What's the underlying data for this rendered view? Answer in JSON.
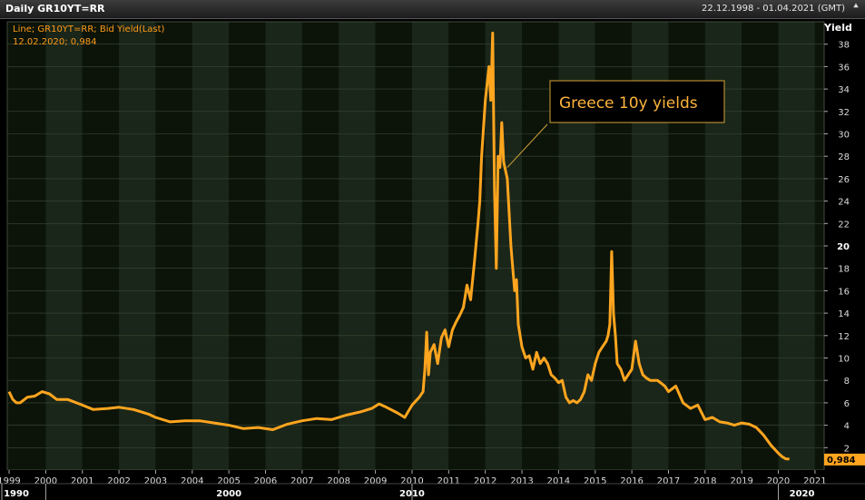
{
  "window": {
    "title": "Daily GR10YT=RR",
    "date_range": "22.12.1998 - 01.04.2021 (GMT)",
    "collapse_icon": "double-chevron-up-icon"
  },
  "legend": {
    "line1": "Line; GR10YT=RR; Bid Yield(Last)",
    "line2": "12.02.2020; 0,984"
  },
  "annotation": {
    "text": "Greece 10y yields"
  },
  "last_value_label": "0,984",
  "colors": {
    "series": "#ffa51f",
    "background": "#0c1409",
    "band_alt": "#1a2619",
    "grid": "#3a4a38",
    "annotation_border": "#d4a23a"
  },
  "chart_data": {
    "type": "line",
    "title": "",
    "xlabel": "",
    "ylabel": "Yield",
    "ylim": [
      0,
      40
    ],
    "yticks": [
      2,
      4,
      6,
      8,
      10,
      12,
      14,
      16,
      18,
      20,
      22,
      24,
      26,
      28,
      30,
      32,
      34,
      36,
      38
    ],
    "xlim": [
      1998.95,
      2021.25
    ],
    "xticks": [
      "1999",
      "2000",
      "2001",
      "2002",
      "2003",
      "2004",
      "2005",
      "2006",
      "2007",
      "2008",
      "2009",
      "2010",
      "2011",
      "2012",
      "2013",
      "2014",
      "2015",
      "2016",
      "2017",
      "2018",
      "2019",
      "2020",
      "2021"
    ],
    "decade_labels": [
      "1990",
      "2000",
      "2010",
      "2020"
    ],
    "grid": true,
    "series": [
      {
        "x": [
          1999.0,
          1999.1,
          1999.2,
          1999.3,
          1999.5,
          1999.7,
          1999.9,
          2000.1,
          2000.3,
          2000.6,
          2001.0,
          2001.3,
          2001.7,
          2002.0,
          2002.4,
          2002.8,
          2003.0,
          2003.4,
          2003.8,
          2004.2,
          2004.6,
          2005.0,
          2005.4,
          2005.8,
          2006.2,
          2006.6,
          2007.0,
          2007.4,
          2007.8,
          2008.2,
          2008.6,
          2008.9,
          2009.1,
          2009.3,
          2009.6,
          2009.8,
          2010.0,
          2010.2,
          2010.3,
          2010.35,
          2010.4,
          2010.45,
          2010.5,
          2010.6,
          2010.7,
          2010.8,
          2010.9,
          2011.0,
          2011.1,
          2011.2,
          2011.3,
          2011.4,
          2011.5,
          2011.6,
          2011.7,
          2011.8,
          2011.85,
          2011.9,
          2012.0,
          2012.05,
          2012.1,
          2012.15,
          2012.2,
          2012.25,
          2012.3,
          2012.35,
          2012.4,
          2012.45,
          2012.5,
          2012.6,
          2012.7,
          2012.8,
          2012.85,
          2012.9,
          2013.0,
          2013.1,
          2013.2,
          2013.3,
          2013.4,
          2013.5,
          2013.6,
          2013.7,
          2013.8,
          2013.9,
          2014.0,
          2014.1,
          2014.2,
          2014.3,
          2014.4,
          2014.5,
          2014.6,
          2014.7,
          2014.8,
          2014.9,
          2015.0,
          2015.1,
          2015.2,
          2015.3,
          2015.35,
          2015.4,
          2015.45,
          2015.5,
          2015.55,
          2015.6,
          2015.7,
          2015.8,
          2015.9,
          2016.0,
          2016.1,
          2016.2,
          2016.3,
          2016.4,
          2016.5,
          2016.7,
          2016.9,
          2017.0,
          2017.2,
          2017.4,
          2017.6,
          2017.8,
          2018.0,
          2018.2,
          2018.4,
          2018.6,
          2018.8,
          2019.0,
          2019.2,
          2019.4,
          2019.6,
          2019.8,
          2020.0,
          2020.1,
          2020.2,
          2020.3
        ],
        "y": [
          7.0,
          6.3,
          6.0,
          6.0,
          6.5,
          6.6,
          7.0,
          6.8,
          6.3,
          6.3,
          5.8,
          5.4,
          5.5,
          5.6,
          5.4,
          5.0,
          4.7,
          4.3,
          4.4,
          4.4,
          4.2,
          4.0,
          3.7,
          3.8,
          3.6,
          4.1,
          4.4,
          4.6,
          4.5,
          4.9,
          5.2,
          5.5,
          5.9,
          5.6,
          5.1,
          4.7,
          5.8,
          6.5,
          7.0,
          9.0,
          12.3,
          8.5,
          10.5,
          11.2,
          9.5,
          11.8,
          12.5,
          11.0,
          12.5,
          13.2,
          13.8,
          14.5,
          16.5,
          15.2,
          18.5,
          22.0,
          24.0,
          28.0,
          33.0,
          34.5,
          36.0,
          33.0,
          39.0,
          25.0,
          18.0,
          28.0,
          27.0,
          31.0,
          27.5,
          26.0,
          20.0,
          16.0,
          17.0,
          13.0,
          11.0,
          10.0,
          10.2,
          9.0,
          10.5,
          9.5,
          10.0,
          9.5,
          8.5,
          8.2,
          7.8,
          8.0,
          6.5,
          6.0,
          6.2,
          6.0,
          6.3,
          7.0,
          8.5,
          8.0,
          9.5,
          10.5,
          11.0,
          11.5,
          12.0,
          13.0,
          19.5,
          14.0,
          12.0,
          9.5,
          9.0,
          8.0,
          8.5,
          9.0,
          11.5,
          9.5,
          8.5,
          8.2,
          8.0,
          8.0,
          7.5,
          7.0,
          7.5,
          6.0,
          5.5,
          5.8,
          4.5,
          4.7,
          4.3,
          4.2,
          4.0,
          4.2,
          4.1,
          3.8,
          3.1,
          2.2,
          1.5,
          1.2,
          1.0,
          0.98
        ]
      }
    ]
  }
}
